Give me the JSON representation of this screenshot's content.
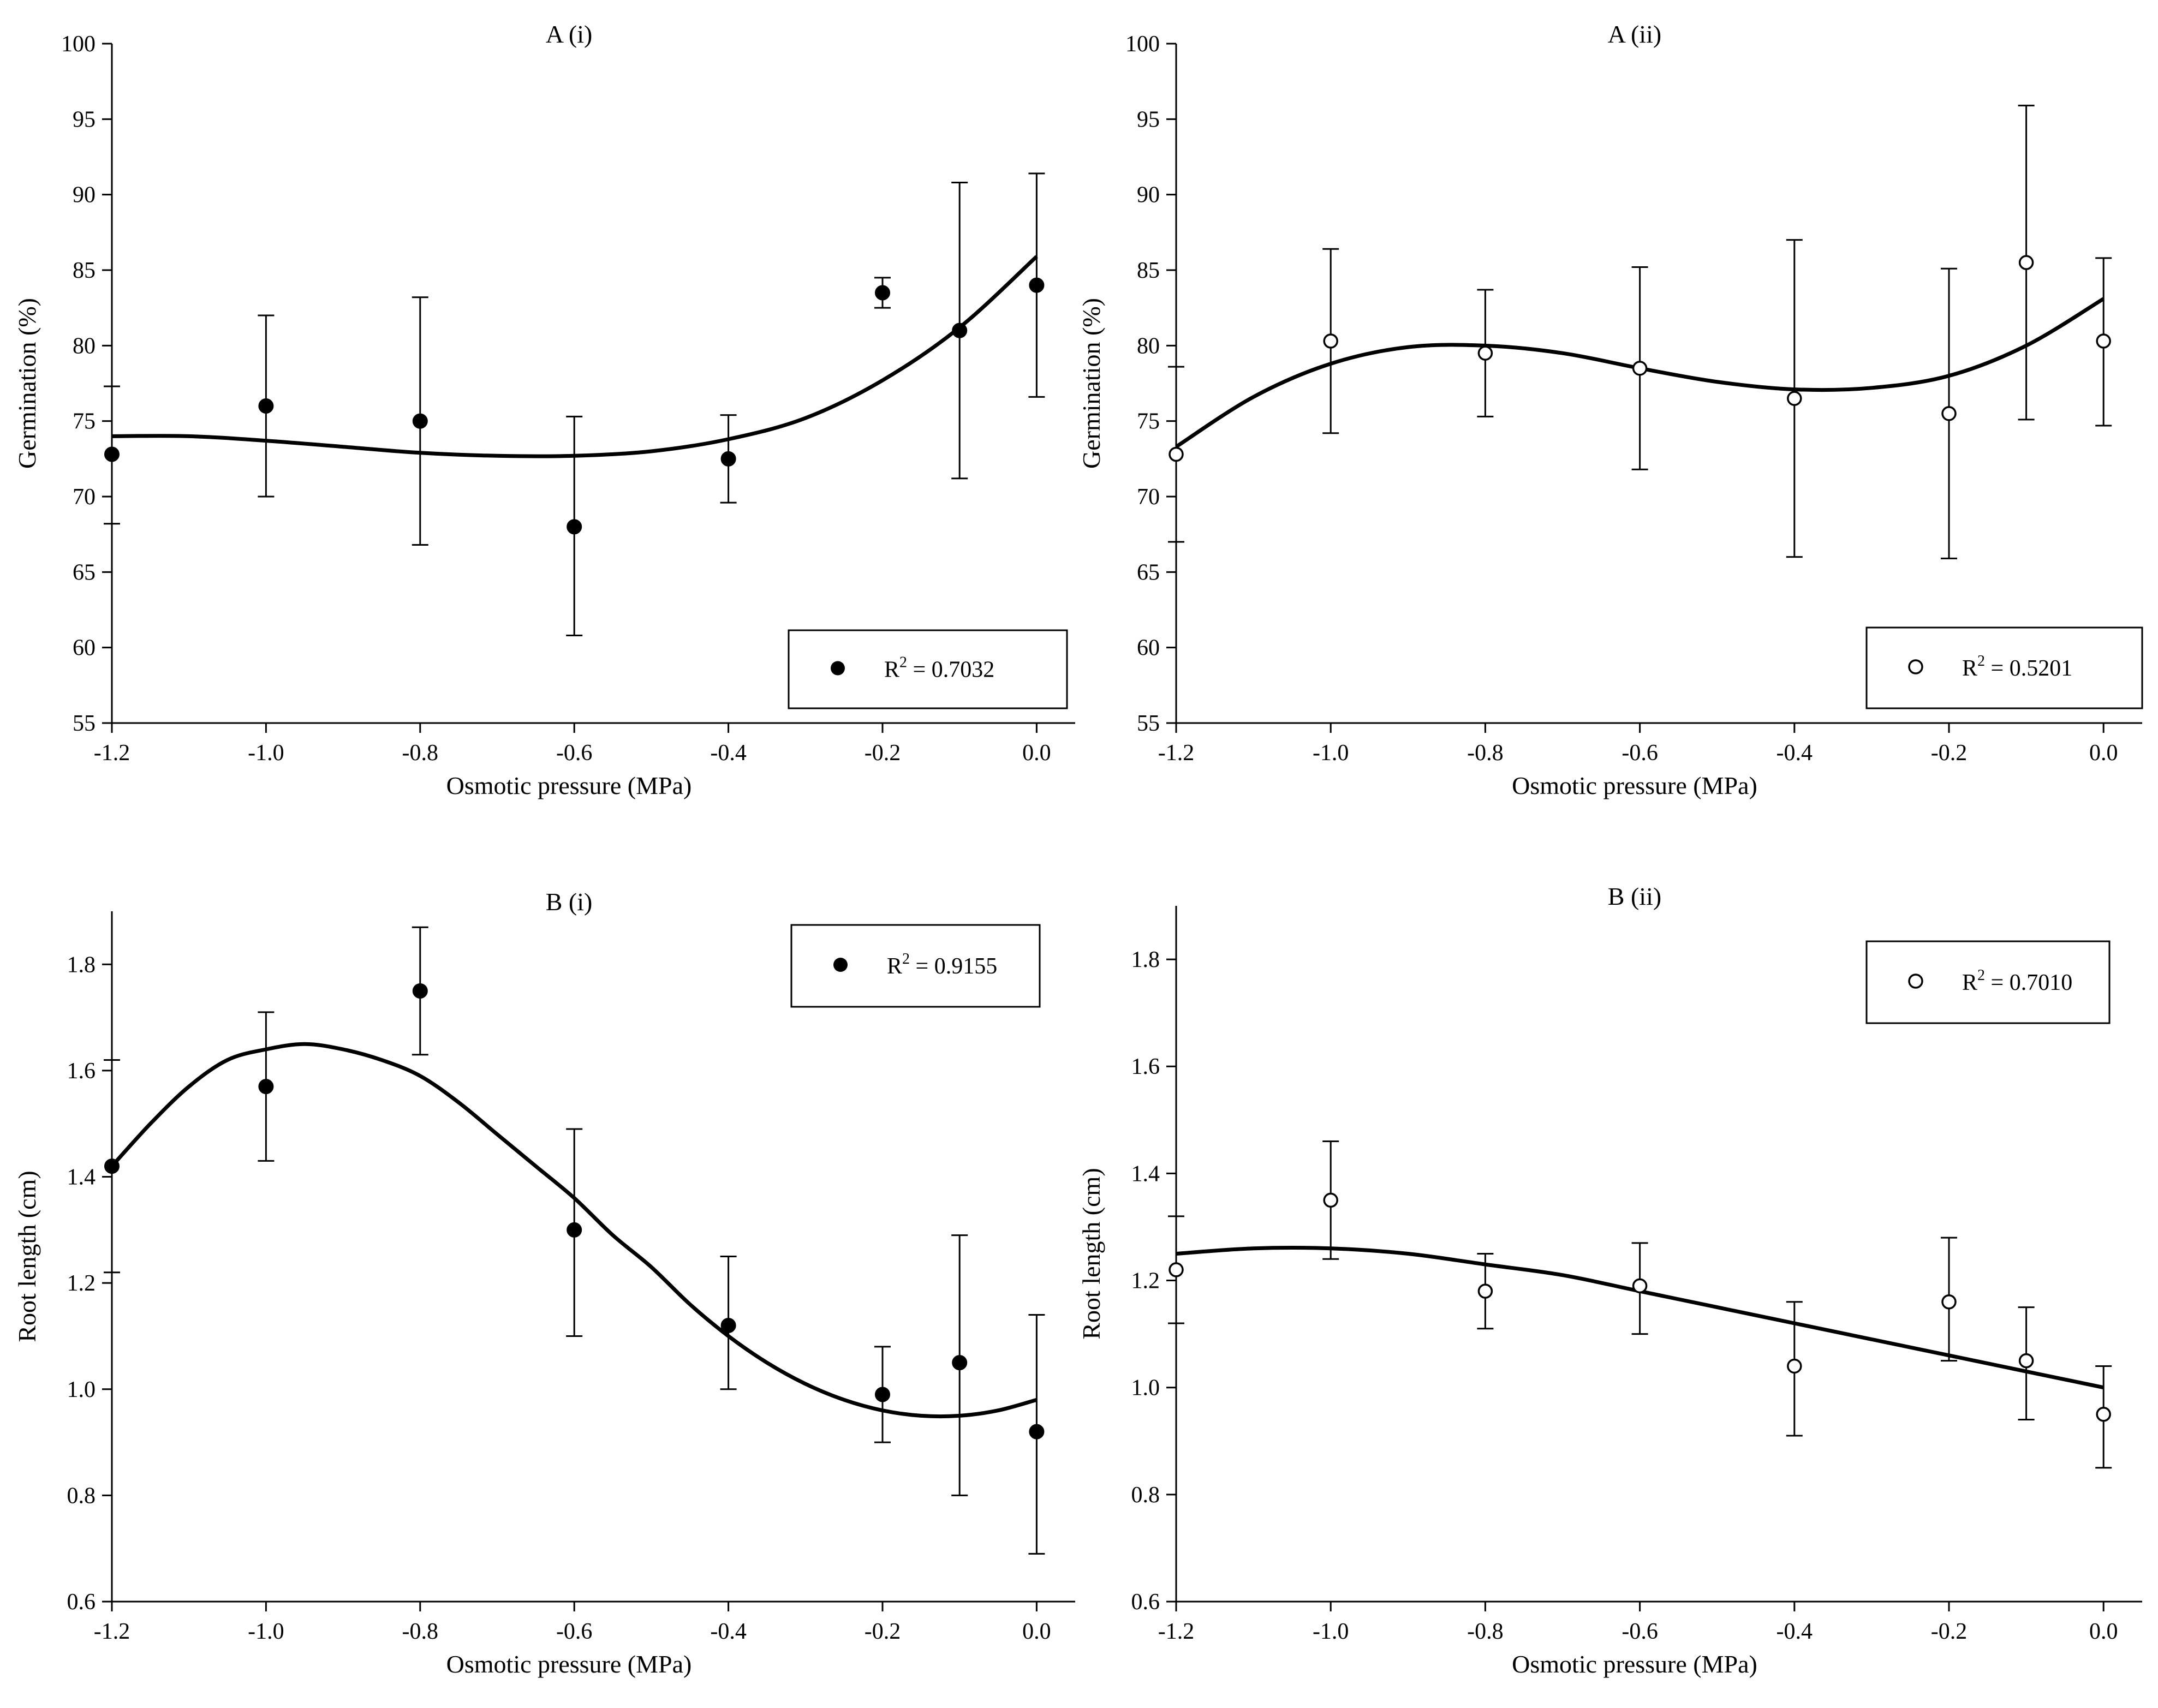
{
  "chart_data": [
    {
      "type": "scatter",
      "id": "a-i",
      "title": "A (i)",
      "xlabel": "Osmotic pressure (MPa)",
      "ylabel": "Germination (%)",
      "xlim": [
        -1.2,
        0.05
      ],
      "ylim": [
        55,
        100
      ],
      "xticks": [
        -1.2,
        -1.0,
        -0.8,
        -0.6,
        -0.4,
        -0.2,
        0.0
      ],
      "xtick_labels": [
        "-1.2",
        "-1.0",
        "-0.8",
        "-0.6",
        "-0.4",
        "-0.2",
        "0.0"
      ],
      "yticks": [
        55,
        60,
        65,
        70,
        75,
        80,
        85,
        90,
        95,
        100
      ],
      "ytick_labels": [
        "55",
        "60",
        "65",
        "70",
        "75",
        "80",
        "85",
        "90",
        "95",
        "100"
      ],
      "marker": "filled",
      "legend": {
        "prefix": "R",
        "sup": "2",
        "value": " = 0.7032",
        "placement": "bottom-right"
      },
      "series": [
        {
          "name": "Germination",
          "x": [
            -1.2,
            -1.0,
            -0.8,
            -0.6,
            -0.4,
            -0.2,
            -0.1,
            0.0
          ],
          "y": [
            72.8,
            76.0,
            75.0,
            68.0,
            72.5,
            83.5,
            81.0,
            84.0
          ],
          "err_low": [
            68.2,
            70.0,
            66.8,
            60.8,
            69.6,
            82.5,
            71.2,
            76.6
          ],
          "err_high": [
            77.3,
            82.0,
            83.2,
            75.3,
            75.4,
            84.5,
            90.8,
            91.4
          ]
        }
      ],
      "fit": {
        "x": [
          -1.2,
          -1.1,
          -1.0,
          -0.9,
          -0.8,
          -0.7,
          -0.6,
          -0.5,
          -0.4,
          -0.3,
          -0.2,
          -0.1,
          0.0
        ],
        "y": [
          74.0,
          74.0,
          73.7,
          73.3,
          72.9,
          72.7,
          72.7,
          73.0,
          73.8,
          75.2,
          77.7,
          81.2,
          85.9
        ]
      }
    },
    {
      "type": "scatter",
      "id": "a-ii",
      "title": "A (ii)",
      "xlabel": "Osmotic pressure (MPa)",
      "ylabel": "Germination (%)",
      "xlim": [
        -1.2,
        0.05
      ],
      "ylim": [
        55,
        100
      ],
      "xticks": [
        -1.2,
        -1.0,
        -0.8,
        -0.6,
        -0.4,
        -0.2,
        0.0
      ],
      "xtick_labels": [
        "-1.2",
        "-1.0",
        "-0.8",
        "-0.6",
        "-0.4",
        "-0.2",
        "0.0"
      ],
      "yticks": [
        55,
        60,
        65,
        70,
        75,
        80,
        85,
        90,
        95,
        100
      ],
      "ytick_labels": [
        "55",
        "60",
        "65",
        "70",
        "75",
        "80",
        "85",
        "90",
        "95",
        "100"
      ],
      "marker": "open",
      "legend": {
        "prefix": "R",
        "sup": "2",
        "value": " = 0.5201",
        "placement": "bottom-right"
      },
      "series": [
        {
          "name": "Germination",
          "x": [
            -1.2,
            -1.0,
            -0.8,
            -0.6,
            -0.4,
            -0.2,
            -0.1,
            0.0
          ],
          "y": [
            72.8,
            80.3,
            79.5,
            78.5,
            76.5,
            75.5,
            85.5,
            80.3
          ],
          "err_low": [
            67.0,
            74.2,
            75.3,
            71.8,
            66.0,
            65.9,
            75.1,
            74.7
          ],
          "err_high": [
            78.6,
            86.4,
            83.7,
            85.2,
            87.0,
            85.1,
            95.9,
            85.8
          ]
        }
      ],
      "fit": {
        "x": [
          -1.2,
          -1.1,
          -1.0,
          -0.9,
          -0.8,
          -0.7,
          -0.6,
          -0.5,
          -0.4,
          -0.3,
          -0.2,
          -0.1,
          0.0
        ],
        "y": [
          73.3,
          76.6,
          78.8,
          79.9,
          80.0,
          79.5,
          78.5,
          77.6,
          77.1,
          77.2,
          78.0,
          80.0,
          83.1
        ]
      }
    },
    {
      "type": "scatter",
      "id": "b-i",
      "title": "B (i)",
      "xlabel": "Osmotic pressure (MPa)",
      "ylabel": "Root length (cm)",
      "xlim": [
        -1.2,
        0.05
      ],
      "ylim": [
        0.6,
        1.9
      ],
      "xticks": [
        -1.2,
        -1.0,
        -0.8,
        -0.6,
        -0.4,
        -0.2,
        0.0
      ],
      "xtick_labels": [
        "-1.2",
        "-1.0",
        "-0.8",
        "-0.6",
        "-0.4",
        "-0.2",
        "0.0"
      ],
      "yticks": [
        0.6,
        0.8,
        1.0,
        1.2,
        1.4,
        1.6,
        1.8
      ],
      "ytick_labels": [
        "0.6",
        "0.8",
        "1.0",
        "1.2",
        "1.4",
        "1.6",
        "1.8"
      ],
      "marker": "filled",
      "legend": {
        "prefix": "R",
        "sup": "2",
        "value": " = 0.9155",
        "placement": "top-right"
      },
      "series": [
        {
          "name": "Root length",
          "x": [
            -1.2,
            -1.0,
            -0.8,
            -0.6,
            -0.4,
            -0.2,
            -0.1,
            0.0
          ],
          "y": [
            1.42,
            1.57,
            1.75,
            1.3,
            1.12,
            0.99,
            1.05,
            0.92
          ],
          "err_low": [
            1.22,
            1.43,
            1.63,
            1.1,
            1.0,
            0.9,
            0.8,
            0.69
          ],
          "err_high": [
            1.62,
            1.71,
            1.87,
            1.49,
            1.25,
            1.08,
            1.29,
            1.14
          ]
        }
      ],
      "fit": {
        "x": [
          -1.2,
          -1.15,
          -1.1,
          -1.05,
          -1.0,
          -0.95,
          -0.9,
          -0.85,
          -0.8,
          -0.75,
          -0.7,
          -0.65,
          -0.6,
          -0.55,
          -0.5,
          -0.45,
          -0.4,
          -0.35,
          -0.3,
          -0.25,
          -0.2,
          -0.15,
          -0.1,
          -0.05,
          0.0
        ],
        "y": [
          1.42,
          1.5,
          1.57,
          1.62,
          1.64,
          1.65,
          1.64,
          1.62,
          1.59,
          1.54,
          1.48,
          1.42,
          1.36,
          1.29,
          1.23,
          1.16,
          1.1,
          1.05,
          1.01,
          0.98,
          0.96,
          0.95,
          0.95,
          0.96,
          0.98
        ]
      }
    },
    {
      "type": "scatter",
      "id": "b-ii",
      "title": "B (ii)",
      "xlabel": "Osmotic pressure (MPa)",
      "ylabel": "Root length (cm)",
      "xlim": [
        -1.2,
        0.05
      ],
      "ylim": [
        0.6,
        1.9
      ],
      "xticks": [
        -1.2,
        -1.0,
        -0.8,
        -0.6,
        -0.4,
        -0.2,
        0.0
      ],
      "xtick_labels": [
        "-1.2",
        "-1.0",
        "-0.8",
        "-0.6",
        "-0.4",
        "-0.2",
        "0.0"
      ],
      "yticks": [
        0.6,
        0.8,
        1.0,
        1.2,
        1.4,
        1.6,
        1.8
      ],
      "ytick_labels": [
        "0.6",
        "0.8",
        "1.0",
        "1.2",
        "1.4",
        "1.6",
        "1.8"
      ],
      "marker": "open",
      "legend": {
        "prefix": "R",
        "sup": "2",
        "value": " = 0.7010",
        "placement": "top-right"
      },
      "series": [
        {
          "name": "Root length",
          "x": [
            -1.2,
            -1.0,
            -0.8,
            -0.6,
            -0.4,
            -0.2,
            -0.1,
            0.0
          ],
          "y": [
            1.22,
            1.35,
            1.18,
            1.19,
            1.04,
            1.16,
            1.05,
            0.95
          ],
          "err_low": [
            1.12,
            1.24,
            1.11,
            1.1,
            0.91,
            1.05,
            0.94,
            0.85
          ],
          "err_high": [
            1.32,
            1.46,
            1.25,
            1.27,
            1.16,
            1.28,
            1.15,
            1.04
          ]
        }
      ],
      "fit": {
        "x": [
          -1.2,
          -1.1,
          -1.0,
          -0.9,
          -0.8,
          -0.7,
          -0.6,
          -0.5,
          -0.4,
          -0.3,
          -0.2,
          -0.1,
          0.0
        ],
        "y": [
          1.25,
          1.26,
          1.26,
          1.25,
          1.23,
          1.21,
          1.18,
          1.15,
          1.12,
          1.09,
          1.06,
          1.03,
          1.0
        ]
      }
    }
  ]
}
